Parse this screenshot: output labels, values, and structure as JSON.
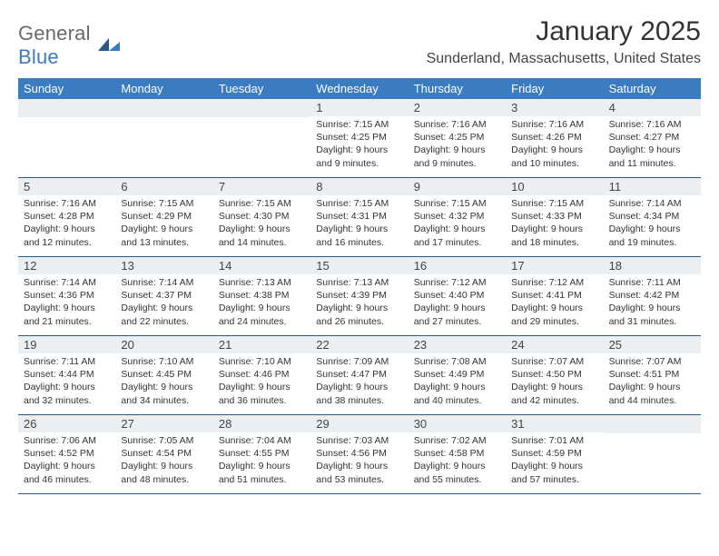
{
  "brand": {
    "word1": "General",
    "word2": "Blue"
  },
  "title": "January 2025",
  "location": "Sunderland, Massachusetts, United States",
  "colors": {
    "header_bg": "#3b7bbf",
    "header_text": "#ffffff",
    "row_divider": "#2a5a8a",
    "daynum_bg": "#eceff1",
    "text": "#333333",
    "logo_gray": "#6a6a6a",
    "logo_blue": "#3b7bbf"
  },
  "dow": [
    "Sunday",
    "Monday",
    "Tuesday",
    "Wednesday",
    "Thursday",
    "Friday",
    "Saturday"
  ],
  "weeks": [
    [
      {
        "n": "",
        "lines": []
      },
      {
        "n": "",
        "lines": []
      },
      {
        "n": "",
        "lines": []
      },
      {
        "n": "1",
        "lines": [
          "Sunrise: 7:15 AM",
          "Sunset: 4:25 PM",
          "Daylight: 9 hours and 9 minutes."
        ]
      },
      {
        "n": "2",
        "lines": [
          "Sunrise: 7:16 AM",
          "Sunset: 4:25 PM",
          "Daylight: 9 hours and 9 minutes."
        ]
      },
      {
        "n": "3",
        "lines": [
          "Sunrise: 7:16 AM",
          "Sunset: 4:26 PM",
          "Daylight: 9 hours and 10 minutes."
        ]
      },
      {
        "n": "4",
        "lines": [
          "Sunrise: 7:16 AM",
          "Sunset: 4:27 PM",
          "Daylight: 9 hours and 11 minutes."
        ]
      }
    ],
    [
      {
        "n": "5",
        "lines": [
          "Sunrise: 7:16 AM",
          "Sunset: 4:28 PM",
          "Daylight: 9 hours and 12 minutes."
        ]
      },
      {
        "n": "6",
        "lines": [
          "Sunrise: 7:15 AM",
          "Sunset: 4:29 PM",
          "Daylight: 9 hours and 13 minutes."
        ]
      },
      {
        "n": "7",
        "lines": [
          "Sunrise: 7:15 AM",
          "Sunset: 4:30 PM",
          "Daylight: 9 hours and 14 minutes."
        ]
      },
      {
        "n": "8",
        "lines": [
          "Sunrise: 7:15 AM",
          "Sunset: 4:31 PM",
          "Daylight: 9 hours and 16 minutes."
        ]
      },
      {
        "n": "9",
        "lines": [
          "Sunrise: 7:15 AM",
          "Sunset: 4:32 PM",
          "Daylight: 9 hours and 17 minutes."
        ]
      },
      {
        "n": "10",
        "lines": [
          "Sunrise: 7:15 AM",
          "Sunset: 4:33 PM",
          "Daylight: 9 hours and 18 minutes."
        ]
      },
      {
        "n": "11",
        "lines": [
          "Sunrise: 7:14 AM",
          "Sunset: 4:34 PM",
          "Daylight: 9 hours and 19 minutes."
        ]
      }
    ],
    [
      {
        "n": "12",
        "lines": [
          "Sunrise: 7:14 AM",
          "Sunset: 4:36 PM",
          "Daylight: 9 hours and 21 minutes."
        ]
      },
      {
        "n": "13",
        "lines": [
          "Sunrise: 7:14 AM",
          "Sunset: 4:37 PM",
          "Daylight: 9 hours and 22 minutes."
        ]
      },
      {
        "n": "14",
        "lines": [
          "Sunrise: 7:13 AM",
          "Sunset: 4:38 PM",
          "Daylight: 9 hours and 24 minutes."
        ]
      },
      {
        "n": "15",
        "lines": [
          "Sunrise: 7:13 AM",
          "Sunset: 4:39 PM",
          "Daylight: 9 hours and 26 minutes."
        ]
      },
      {
        "n": "16",
        "lines": [
          "Sunrise: 7:12 AM",
          "Sunset: 4:40 PM",
          "Daylight: 9 hours and 27 minutes."
        ]
      },
      {
        "n": "17",
        "lines": [
          "Sunrise: 7:12 AM",
          "Sunset: 4:41 PM",
          "Daylight: 9 hours and 29 minutes."
        ]
      },
      {
        "n": "18",
        "lines": [
          "Sunrise: 7:11 AM",
          "Sunset: 4:42 PM",
          "Daylight: 9 hours and 31 minutes."
        ]
      }
    ],
    [
      {
        "n": "19",
        "lines": [
          "Sunrise: 7:11 AM",
          "Sunset: 4:44 PM",
          "Daylight: 9 hours and 32 minutes."
        ]
      },
      {
        "n": "20",
        "lines": [
          "Sunrise: 7:10 AM",
          "Sunset: 4:45 PM",
          "Daylight: 9 hours and 34 minutes."
        ]
      },
      {
        "n": "21",
        "lines": [
          "Sunrise: 7:10 AM",
          "Sunset: 4:46 PM",
          "Daylight: 9 hours and 36 minutes."
        ]
      },
      {
        "n": "22",
        "lines": [
          "Sunrise: 7:09 AM",
          "Sunset: 4:47 PM",
          "Daylight: 9 hours and 38 minutes."
        ]
      },
      {
        "n": "23",
        "lines": [
          "Sunrise: 7:08 AM",
          "Sunset: 4:49 PM",
          "Daylight: 9 hours and 40 minutes."
        ]
      },
      {
        "n": "24",
        "lines": [
          "Sunrise: 7:07 AM",
          "Sunset: 4:50 PM",
          "Daylight: 9 hours and 42 minutes."
        ]
      },
      {
        "n": "25",
        "lines": [
          "Sunrise: 7:07 AM",
          "Sunset: 4:51 PM",
          "Daylight: 9 hours and 44 minutes."
        ]
      }
    ],
    [
      {
        "n": "26",
        "lines": [
          "Sunrise: 7:06 AM",
          "Sunset: 4:52 PM",
          "Daylight: 9 hours and 46 minutes."
        ]
      },
      {
        "n": "27",
        "lines": [
          "Sunrise: 7:05 AM",
          "Sunset: 4:54 PM",
          "Daylight: 9 hours and 48 minutes."
        ]
      },
      {
        "n": "28",
        "lines": [
          "Sunrise: 7:04 AM",
          "Sunset: 4:55 PM",
          "Daylight: 9 hours and 51 minutes."
        ]
      },
      {
        "n": "29",
        "lines": [
          "Sunrise: 7:03 AM",
          "Sunset: 4:56 PM",
          "Daylight: 9 hours and 53 minutes."
        ]
      },
      {
        "n": "30",
        "lines": [
          "Sunrise: 7:02 AM",
          "Sunset: 4:58 PM",
          "Daylight: 9 hours and 55 minutes."
        ]
      },
      {
        "n": "31",
        "lines": [
          "Sunrise: 7:01 AM",
          "Sunset: 4:59 PM",
          "Daylight: 9 hours and 57 minutes."
        ]
      },
      {
        "n": "",
        "lines": []
      }
    ]
  ]
}
